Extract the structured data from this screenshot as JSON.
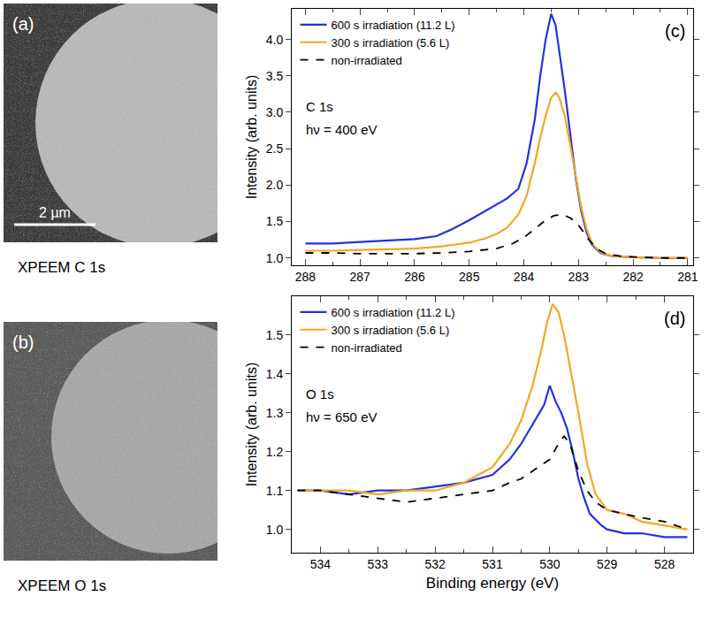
{
  "images": [
    {
      "label": "(a)",
      "caption": "XPEEM C 1s",
      "scale_bar": "2 µm"
    },
    {
      "label": "(b)",
      "caption": "XPEEM O 1s"
    }
  ],
  "chart_data": [
    {
      "type": "line",
      "label": "(c)",
      "annotations": [
        "C 1s",
        "hν = 400 eV"
      ],
      "y_label": "Intensity (arb. units)",
      "xlim": [
        288.25,
        280.9
      ],
      "xticks": [
        288,
        287,
        286,
        285,
        284,
        283,
        282,
        281
      ],
      "ylim": [
        0.9,
        4.42
      ],
      "yticks": [
        {
          "value": 1,
          "label": "1.0"
        },
        1.5,
        {
          "value": 2,
          "label": "2.0"
        },
        2.5,
        {
          "value": 3,
          "label": "3.0"
        },
        3.5,
        {
          "value": 4,
          "label": "4.0"
        }
      ],
      "legend": "upper left",
      "series": [
        {
          "name": "600 s irradiation (11.2 L)",
          "color": "#2233dd",
          "line_style": "solid",
          "x": [
            288,
            287.5,
            287,
            286.5,
            286,
            285.6,
            285.3,
            285,
            284.7,
            284.5,
            284.3,
            284.1,
            283.95,
            283.8,
            283.7,
            283.6,
            283.5,
            283.42,
            283.35,
            283.25,
            283.15,
            283.05,
            282.95,
            282.85,
            282.75,
            282.6,
            282.4,
            282,
            281.5,
            281
          ],
          "values": [
            1.2,
            1.2,
            1.22,
            1.24,
            1.26,
            1.3,
            1.4,
            1.52,
            1.65,
            1.74,
            1.82,
            1.95,
            2.3,
            2.9,
            3.5,
            4.0,
            4.35,
            4.2,
            3.85,
            3.3,
            2.7,
            2.1,
            1.65,
            1.35,
            1.18,
            1.07,
            1.03,
            1.01,
            1.0,
            1.0
          ]
        },
        {
          "name": "300 s irradiation (5.6 L)",
          "color": "#f5a623",
          "line_style": "solid",
          "x": [
            288,
            287.5,
            287,
            286.5,
            286,
            285.5,
            285,
            284.7,
            284.5,
            284.3,
            284.1,
            283.95,
            283.8,
            283.7,
            283.6,
            283.5,
            283.42,
            283.35,
            283.25,
            283.15,
            283.05,
            282.95,
            282.85,
            282.75,
            282.6,
            282.4,
            282,
            281.5,
            281
          ],
          "values": [
            1.1,
            1.1,
            1.11,
            1.12,
            1.13,
            1.16,
            1.21,
            1.27,
            1.33,
            1.42,
            1.6,
            1.85,
            2.3,
            2.65,
            2.95,
            3.2,
            3.27,
            3.2,
            2.95,
            2.55,
            2.1,
            1.7,
            1.4,
            1.2,
            1.08,
            1.03,
            1.01,
            1.0,
            1.0
          ]
        },
        {
          "name": "non-irradiated",
          "color": "#000000",
          "line_style": "dashed",
          "x": [
            288,
            287.5,
            287,
            286.5,
            286,
            285.5,
            285,
            284.5,
            284.2,
            284,
            283.8,
            283.6,
            283.45,
            283.3,
            283.15,
            283.0,
            282.9,
            282.8,
            282.65,
            282.5,
            282.2,
            281.8,
            281.4,
            281
          ],
          "values": [
            1.07,
            1.07,
            1.06,
            1.06,
            1.06,
            1.07,
            1.09,
            1.13,
            1.2,
            1.28,
            1.4,
            1.52,
            1.58,
            1.6,
            1.55,
            1.45,
            1.35,
            1.24,
            1.12,
            1.06,
            1.02,
            1.01,
            1.0,
            1.0
          ]
        }
      ]
    },
    {
      "type": "line",
      "label": "(d)",
      "annotations": [
        "O 1s",
        "hν = 650 eV"
      ],
      "x_label": "Binding energy (eV)",
      "y_label": "Intensity (arb. units)",
      "xlim": [
        534.5,
        527.5
      ],
      "xticks": [
        534,
        533,
        532,
        531,
        530,
        529,
        528
      ],
      "ylim": [
        0.94,
        1.6
      ],
      "yticks": [
        {
          "value": 1,
          "label": "1.0"
        },
        1.1,
        1.2,
        1.3,
        1.4,
        1.5
      ],
      "legend": "upper left",
      "series": [
        {
          "name": "600 s irradiation (11.2 L)",
          "color": "#2233dd",
          "line_style": "solid",
          "x": [
            534.4,
            534,
            533.5,
            533,
            532.5,
            532,
            531.5,
            531,
            530.7,
            530.5,
            530.3,
            530.1,
            530.0,
            529.9,
            529.8,
            529.7,
            529.6,
            529.5,
            529.4,
            529.3,
            529.1,
            529.0,
            528.7,
            528.4,
            528,
            527.6
          ],
          "values": [
            1.1,
            1.1,
            1.09,
            1.1,
            1.1,
            1.11,
            1.12,
            1.14,
            1.18,
            1.22,
            1.27,
            1.32,
            1.37,
            1.33,
            1.3,
            1.26,
            1.2,
            1.13,
            1.08,
            1.04,
            1.01,
            1.0,
            0.99,
            0.99,
            0.98,
            0.98
          ]
        },
        {
          "name": "300 s irradiation (5.6 L)",
          "color": "#f5a623",
          "line_style": "solid",
          "x": [
            534.4,
            534,
            533.5,
            533,
            532.5,
            532,
            531.5,
            531,
            530.7,
            530.5,
            530.3,
            530.15,
            530.05,
            529.95,
            529.85,
            529.75,
            529.65,
            529.5,
            529.35,
            529.2,
            529.0,
            528.7,
            528.4,
            528,
            527.6
          ],
          "values": [
            1.1,
            1.1,
            1.1,
            1.09,
            1.1,
            1.1,
            1.12,
            1.16,
            1.22,
            1.28,
            1.37,
            1.46,
            1.53,
            1.58,
            1.56,
            1.5,
            1.42,
            1.3,
            1.17,
            1.09,
            1.05,
            1.04,
            1.02,
            1.01,
            1.0
          ]
        },
        {
          "name": "non-irradiated",
          "color": "#000000",
          "line_style": "dashed",
          "x": [
            534.4,
            534,
            533.5,
            533,
            532.5,
            532,
            531.5,
            531,
            530.7,
            530.5,
            530.2,
            530.0,
            529.85,
            529.75,
            529.65,
            529.5,
            529.35,
            529.2,
            529.0,
            528.7,
            528.4,
            528,
            527.6
          ],
          "values": [
            1.1,
            1.1,
            1.09,
            1.08,
            1.07,
            1.08,
            1.09,
            1.1,
            1.12,
            1.13,
            1.16,
            1.18,
            1.22,
            1.24,
            1.22,
            1.15,
            1.1,
            1.07,
            1.05,
            1.04,
            1.03,
            1.02,
            1.0
          ]
        }
      ]
    }
  ]
}
